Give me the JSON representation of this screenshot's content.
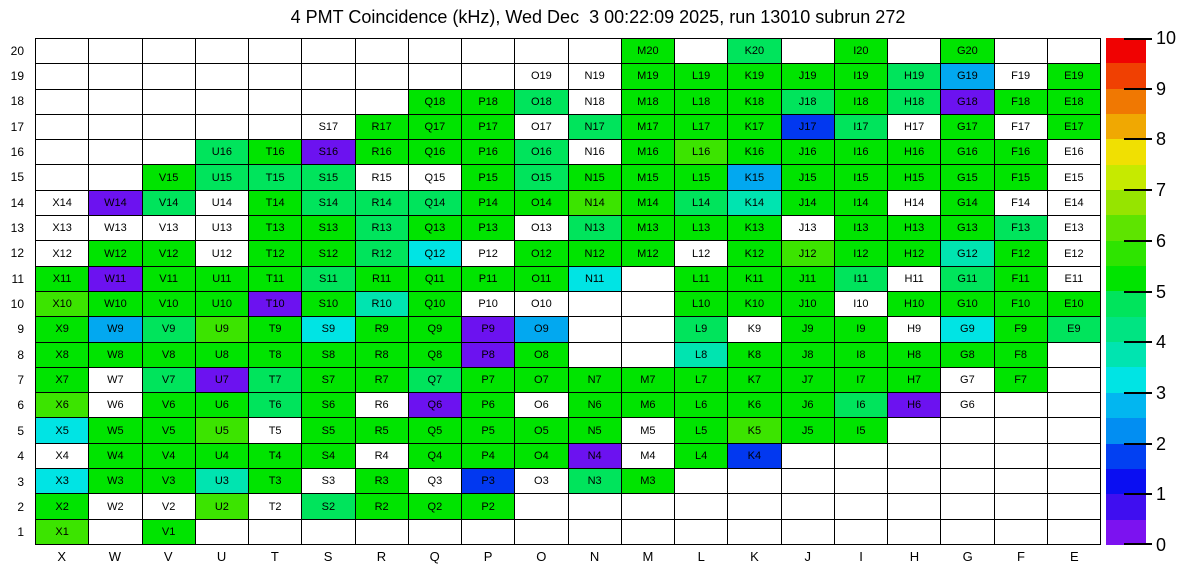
{
  "chart_data": {
    "type": "heatmap",
    "title": "4 PMT Coincidence (kHz), Wed Dec  3 00:22:09 2025, run 13010 subrun 272",
    "columns": [
      "X",
      "W",
      "V",
      "U",
      "T",
      "S",
      "R",
      "Q",
      "P",
      "O",
      "N",
      "M",
      "L",
      "K",
      "J",
      "I",
      "H",
      "G",
      "F",
      "E"
    ],
    "rows": [
      20,
      19,
      18,
      17,
      16,
      15,
      14,
      13,
      12,
      11,
      10,
      9,
      8,
      7,
      6,
      5,
      4,
      3,
      2,
      1
    ],
    "cell_label_rule": "non-'.' cells are labeled column-letter + row-number (e.g. X14); '.' cells are blank",
    "palette": {
      "g": "#00E400",
      "b": "#3CE400",
      "s": "#00E45C",
      "t": "#00E4B0",
      "c": "#00E4E4",
      "k": "#02A8F0",
      "u": "#0238F0",
      "p": "#6C12F0",
      "w": "#FFFFFF",
      ".": "#FFFFFF"
    },
    "palette_values_khz": {
      "g": 5.2,
      "b": 5.9,
      "s": 4.6,
      "t": 3.8,
      "c": 3.3,
      "k": 2.7,
      "u": 1.7,
      "p": 0.4,
      "w": null,
      ".": null
    },
    "cells": [
      "...........g.s.g.g..",
      ".........wwgggggskwg",
      ".......ggswgggsgspgg",
      ".....wgggwsggguswgwg",
      "...sgpgggswgbggggggw",
      "..gssswwgsgggkgggggw",
      "wpswgsssggbgstggwgww",
      "wwwwggsggwsgggwgggsw",
      "wggwggscwgggwgbggtgw",
      "gpgggsggggc.gggswsgw",
      "bgggpgtgww..gggwgggg",
      "gksbgcggpk..swggwcgs",
      "ggggggggpg..tgggggg.",
      "gwspsggsgggggggggwg.",
      "bwggsgwpgwgggggspw..",
      "cggbwggggggwgbgg....",
      "wgggggwgggpwgu......",
      "cggtgwgwuwsg........",
      "gwwbwsggg...........",
      "b.g................."
    ],
    "colorbar": {
      "min": 0,
      "max": 10,
      "ticks": [
        0,
        1,
        2,
        3,
        4,
        5,
        6,
        7,
        8,
        9,
        10
      ],
      "segment_colors_bottom_to_top": [
        "#7C12F0",
        "#3F0EF0",
        "#0A0EF2",
        "#0240F2",
        "#028EF2",
        "#02B6F0",
        "#00E4E4",
        "#00E4B0",
        "#00E482",
        "#00E45C",
        "#00E400",
        "#2EE400",
        "#5EE400",
        "#96E400",
        "#C6EA00",
        "#F0E002",
        "#F0A802",
        "#F07802",
        "#F04002",
        "#F00202"
      ]
    }
  }
}
